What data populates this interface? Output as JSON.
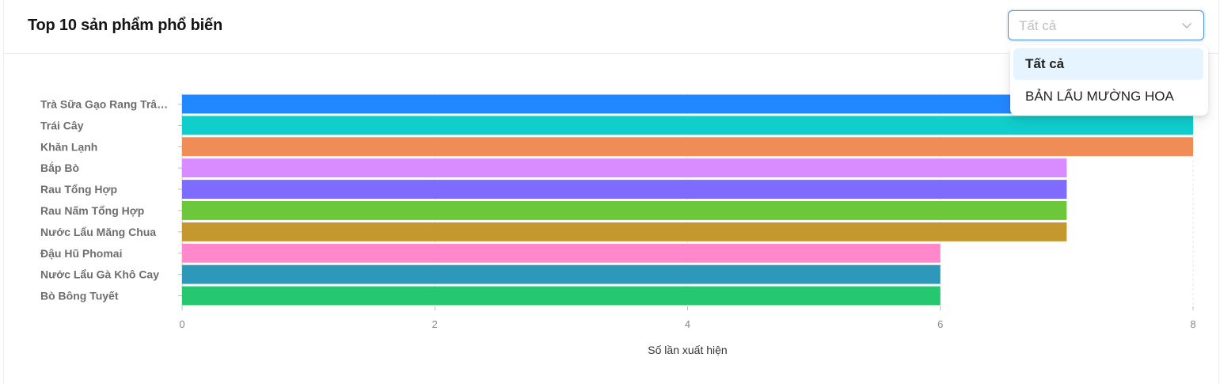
{
  "header": {
    "title": "Top 10 sản phẩm phổ biến"
  },
  "filter": {
    "value": "Tất cả",
    "options": [
      "Tất cả",
      "BẢN LẨU MƯỜNG HOA"
    ],
    "selected_index": 0
  },
  "chart_data": {
    "type": "bar",
    "orientation": "horizontal",
    "categories": [
      "Trà Sữa Gạo Rang Trâ…",
      "Trái Cây",
      "Khăn Lạnh",
      "Bắp Bò",
      "Rau Tổng Hợp",
      "Rau Nấm Tổng Hợp",
      "Nước Lẩu Măng Chua",
      "Đậu Hũ Phomai",
      "Nước Lẩu Gà Khô Cay",
      "Bò Bông Tuyết"
    ],
    "values": [
      8,
      8,
      8,
      7,
      7,
      7,
      7,
      6,
      6,
      6
    ],
    "colors": [
      "#2288ff",
      "#0fcecc",
      "#f08c55",
      "#d98cff",
      "#7e6bff",
      "#6cc83a",
      "#c4972f",
      "#ff88cc",
      "#2e98ba",
      "#25c86f"
    ],
    "xlabel": "Số lần xuất hiện",
    "ylabel": "",
    "xlim": [
      0,
      8
    ],
    "xticks": [
      0,
      2,
      4,
      6,
      8
    ],
    "grid": "vertical-dashed"
  }
}
